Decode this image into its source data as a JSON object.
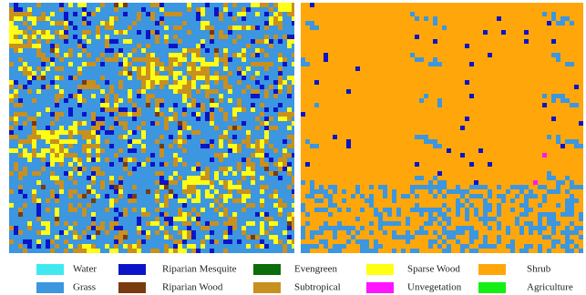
{
  "legend": {
    "items": [
      {
        "label": "Water",
        "color": "#40e8f0"
      },
      {
        "label": "Grass",
        "color": "#3c96e0"
      },
      {
        "label": "Riparian Mesquite",
        "color": "#0a14c8"
      },
      {
        "label": "Riparian Wood",
        "color": "#7a3a10"
      },
      {
        "label": "Evengreen",
        "color": "#0a6e0a"
      },
      {
        "label": "Subtropical",
        "color": "#c8901e"
      },
      {
        "label": "Sparse Wood",
        "color": "#ffff14"
      },
      {
        "label": "Unvegetation",
        "color": "#ff14ff"
      },
      {
        "label": "Shrub",
        "color": "#ffa70a"
      },
      {
        "label": "Agriculture",
        "color": "#14f014"
      }
    ]
  }
}
